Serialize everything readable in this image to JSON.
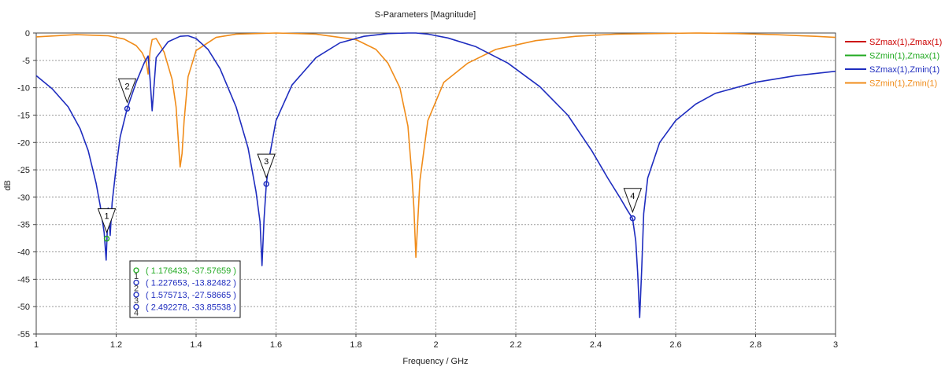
{
  "chart_data": {
    "type": "line",
    "title": "S-Parameters [Magnitude]",
    "xlabel": "Frequency / GHz",
    "ylabel": "dB",
    "xlim": [
      1,
      3
    ],
    "ylim": [
      -55,
      0
    ],
    "xticks": [
      1,
      1.2,
      1.4,
      1.6,
      1.8,
      2,
      2.2,
      2.4,
      2.6,
      2.8,
      3
    ],
    "xtick_labels": [
      "1",
      "1.2",
      "1.4",
      "1.6",
      "1.8",
      "2",
      "2.2",
      "2.4",
      "2.6",
      "2.8",
      "3"
    ],
    "yticks": [
      0,
      -5,
      -10,
      -15,
      -20,
      -25,
      -30,
      -35,
      -40,
      -45,
      -50,
      -55
    ],
    "ytick_labels": [
      "0",
      "-5",
      "-10",
      "-15",
      "-20",
      "-25",
      "-30",
      "-35",
      "-40",
      "-45",
      "-50",
      "-55"
    ],
    "grid": true,
    "legend_position": "right",
    "series": [
      {
        "name": "SZmax(1),Zmax(1)",
        "color": "#cc0000",
        "x": [],
        "y": []
      },
      {
        "name": "SZmin(1),Zmax(1)",
        "color": "#22aa22",
        "x": [],
        "y": []
      },
      {
        "name": "SZmax(1),Zmin(1)",
        "color": "#1f2dbf",
        "x": [
          1.0,
          1.04,
          1.08,
          1.11,
          1.13,
          1.15,
          1.16,
          1.17,
          1.175,
          1.18,
          1.185,
          1.19,
          1.2,
          1.21,
          1.227653,
          1.25,
          1.27,
          1.28,
          1.285,
          1.29,
          1.3,
          1.33,
          1.36,
          1.38,
          1.4,
          1.43,
          1.46,
          1.5,
          1.53,
          1.55,
          1.56,
          1.565,
          1.57,
          1.575713,
          1.585,
          1.6,
          1.64,
          1.7,
          1.76,
          1.82,
          1.88,
          1.93,
          1.95,
          1.98,
          2.03,
          2.1,
          2.18,
          2.26,
          2.33,
          2.39,
          2.43,
          2.46,
          2.48,
          2.492278,
          2.5,
          2.505,
          2.51,
          2.515,
          2.52,
          2.53,
          2.56,
          2.6,
          2.65,
          2.7,
          2.8,
          2.9,
          3.0
        ],
        "y": [
          -7.8,
          -10.2,
          -13.5,
          -17.5,
          -21.5,
          -27.5,
          -31.5,
          -36.5,
          -41.5,
          -32.0,
          -37.0,
          -31.0,
          -24.5,
          -19.0,
          -13.8,
          -9.0,
          -5.5,
          -4.2,
          -8.5,
          -14.2,
          -4.5,
          -1.6,
          -0.6,
          -0.5,
          -1.0,
          -3.0,
          -6.5,
          -13.5,
          -21.0,
          -29.0,
          -34.5,
          -42.5,
          -34.0,
          -27.6,
          -22.0,
          -16.0,
          -9.5,
          -4.5,
          -1.8,
          -0.6,
          -0.1,
          0.0,
          0.0,
          -0.2,
          -0.9,
          -2.5,
          -5.5,
          -9.8,
          -15.0,
          -21.5,
          -26.5,
          -30.0,
          -32.5,
          -33.9,
          -38.0,
          -44.0,
          -52.0,
          -43.0,
          -33.0,
          -26.5,
          -20.0,
          -16.0,
          -13.0,
          -11.0,
          -9.0,
          -7.8,
          -7.0
        ]
      },
      {
        "name": "SZmin(1),Zmin(1)",
        "color": "#f08c1a",
        "x": [
          1.0,
          1.1,
          1.18,
          1.22,
          1.25,
          1.265,
          1.275,
          1.28,
          1.285,
          1.29,
          1.3,
          1.32,
          1.34,
          1.35,
          1.36,
          1.365,
          1.37,
          1.38,
          1.4,
          1.45,
          1.5,
          1.6,
          1.7,
          1.8,
          1.85,
          1.88,
          1.91,
          1.93,
          1.94,
          1.945,
          1.95,
          1.96,
          1.98,
          2.02,
          2.08,
          2.15,
          2.25,
          2.35,
          2.45,
          2.55,
          2.65,
          2.75,
          2.85,
          2.95,
          3.0
        ],
        "y": [
          -0.7,
          -0.3,
          -0.5,
          -1.1,
          -2.3,
          -3.6,
          -5.2,
          -7.5,
          -3.2,
          -1.2,
          -1.0,
          -3.5,
          -8.5,
          -13.5,
          -24.5,
          -22.0,
          -16.0,
          -8.0,
          -3.2,
          -0.8,
          -0.2,
          0.0,
          -0.2,
          -1.2,
          -3.0,
          -5.5,
          -10.0,
          -17.0,
          -26.0,
          -32.0,
          -41.0,
          -27.0,
          -16.0,
          -9.0,
          -5.5,
          -3.0,
          -1.4,
          -0.6,
          -0.2,
          -0.1,
          0.0,
          -0.1,
          -0.3,
          -0.6,
          -0.8
        ]
      }
    ],
    "markers": [
      {
        "label": "1",
        "x": 1.176433,
        "y": -37.57659,
        "color": "#22aa22"
      },
      {
        "label": "2",
        "x": 1.227653,
        "y": -13.82482,
        "color": "#1f2dbf"
      },
      {
        "label": "3",
        "x": 1.575713,
        "y": -27.58665,
        "color": "#1f2dbf"
      },
      {
        "label": "4",
        "x": 2.492278,
        "y": -33.85538,
        "color": "#1f2dbf"
      }
    ],
    "readout": [
      {
        "index": "1",
        "text": "( 1.176433, -37.57659 )",
        "color": "#22aa22"
      },
      {
        "index": "2",
        "text": "( 1.227653, -13.82482 )",
        "color": "#1f2dbf"
      },
      {
        "index": "3",
        "text": "( 1.575713, -27.58665 )",
        "color": "#1f2dbf"
      },
      {
        "index": "4",
        "text": "( 2.492278, -33.85538 )",
        "color": "#1f2dbf"
      }
    ]
  }
}
